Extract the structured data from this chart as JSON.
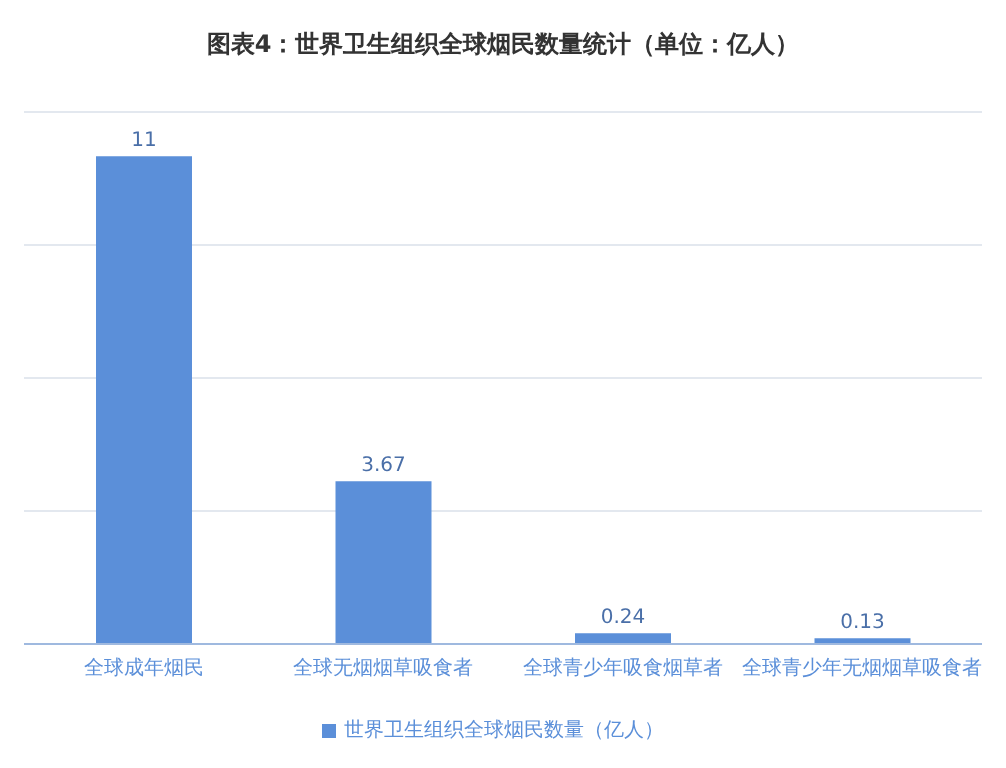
{
  "chart_data": {
    "type": "bar",
    "title": "图表4：世界卫生组织全球烟民数量统计（单位：亿人）",
    "categories": [
      "全球成年烟民",
      "全球无烟烟草吸食者",
      "全球青少年吸食烟草者",
      "全球青少年无烟烟草吸食者"
    ],
    "series": [
      {
        "name": "世界卫生组织全球烟民数量（亿人）",
        "color": "#5b8fd9",
        "values": [
          11,
          3.67,
          0.24,
          0.13
        ]
      }
    ],
    "data_labels": true,
    "grid": "y",
    "legend": "bottom",
    "tick_labels": "x"
  }
}
